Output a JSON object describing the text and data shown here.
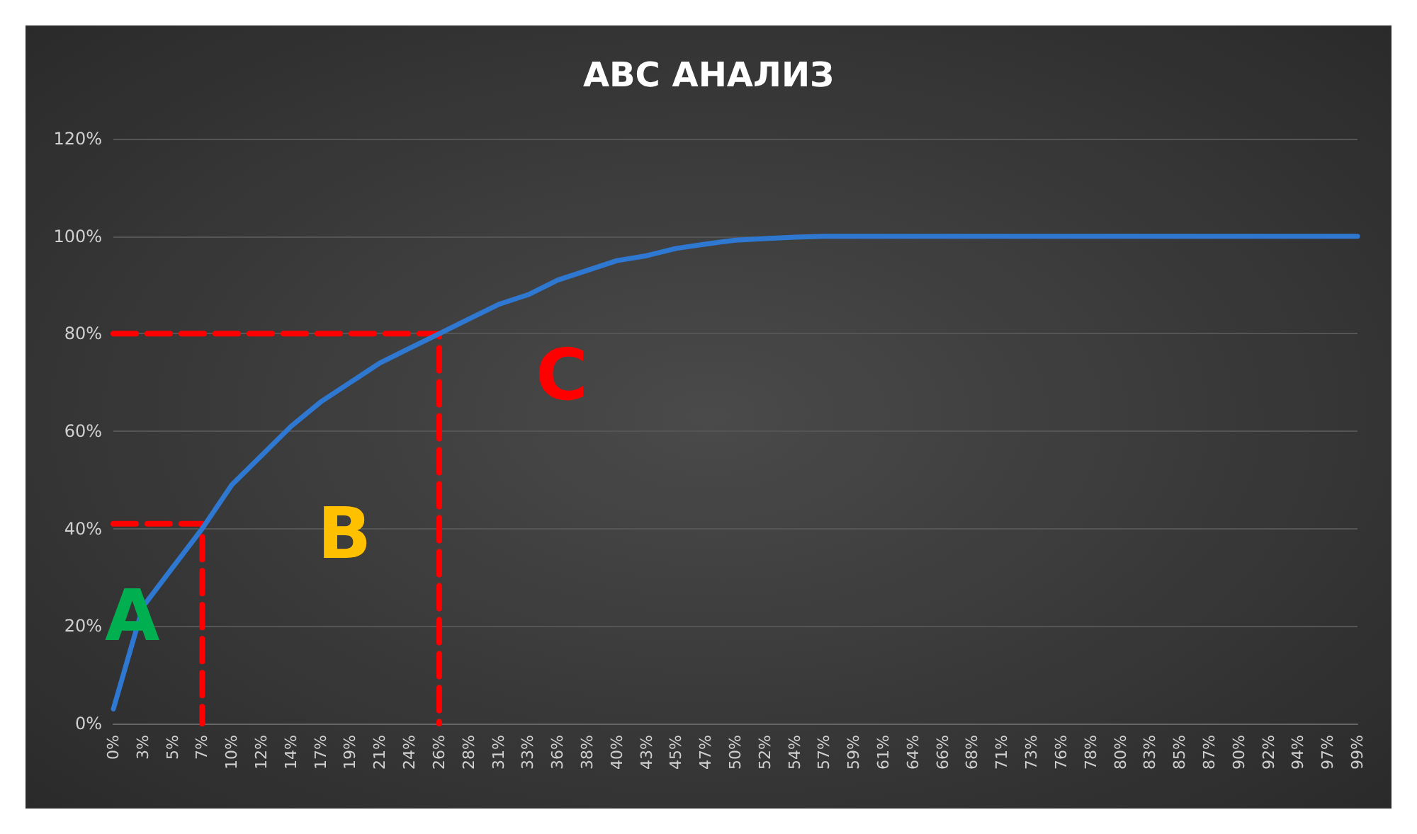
{
  "chart_data": {
    "type": "line",
    "title": "ABC АНАЛИЗ",
    "categories": [
      "0%",
      "3%",
      "5%",
      "7%",
      "10%",
      "12%",
      "14%",
      "17%",
      "19%",
      "21%",
      "24%",
      "26%",
      "28%",
      "31%",
      "33%",
      "36%",
      "38%",
      "40%",
      "43%",
      "45%",
      "47%",
      "50%",
      "52%",
      "54%",
      "57%",
      "59%",
      "61%",
      "64%",
      "66%",
      "68%",
      "71%",
      "73%",
      "76%",
      "78%",
      "80%",
      "83%",
      "85%",
      "87%",
      "90%",
      "92%",
      "94%",
      "97%",
      "99%"
    ],
    "series": [
      {
        "color": "#2e78d2",
        "values": [
          3,
          24,
          32,
          40,
          49,
          55,
          61,
          66,
          70,
          74,
          77,
          80,
          83,
          86,
          88,
          91,
          93,
          95,
          96,
          97.5,
          98.4,
          99.2,
          99.5,
          99.8,
          100,
          100,
          100,
          100,
          100,
          100,
          100,
          100,
          100,
          100,
          100,
          100,
          100,
          100,
          100,
          100,
          100,
          100,
          100
        ]
      },
      {
        "color": "#ff0000",
        "line_style": "dashed",
        "x": [
          "0%",
          "7%",
          "7%"
        ],
        "values": [
          41,
          41,
          0
        ]
      },
      {
        "color": "#ff0000",
        "line_style": "dashed",
        "x": [
          "0%",
          "26%",
          "26%"
        ],
        "values": [
          80,
          80,
          0
        ]
      }
    ],
    "ylim": [
      0,
      120
    ],
    "yticks": [
      {
        "value": 0,
        "label": "0%"
      },
      {
        "value": 20,
        "label": "20%"
      },
      {
        "value": 40,
        "label": "40%"
      },
      {
        "value": 60,
        "label": "60%"
      },
      {
        "value": 80,
        "label": "80%"
      },
      {
        "value": 100,
        "label": "100%"
      },
      {
        "value": 120,
        "label": "120%"
      }
    ],
    "grid": "y",
    "marker": "none",
    "line_style": "solid",
    "annotations": [
      "A",
      "B",
      "C"
    ]
  }
}
